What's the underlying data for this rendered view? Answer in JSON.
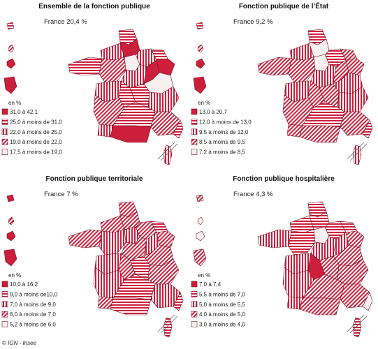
{
  "colors": {
    "accent": "#cc1f3c",
    "border": "#7a0f22",
    "empty": "#f7f0f1"
  },
  "credit": "© IGN - Insee",
  "unit_label": "en %",
  "panels": [
    {
      "title": "Ensemble de la fonction publique",
      "france": "France 20,4 %",
      "legend": [
        {
          "label": "31,0 à 42,1",
          "pattern": "solid"
        },
        {
          "label": "25,0 à moins de 31,0",
          "pattern": "hlines"
        },
        {
          "label": "22,0 à moins de 25,0",
          "pattern": "vlines"
        },
        {
          "label": "19,0 à moins de 22,0",
          "pattern": "diag"
        },
        {
          "label": "17,5 à moins de 19,0",
          "pattern": "empty"
        }
      ],
      "regions": [
        "hlines",
        "solid",
        "vlines",
        "hlines",
        "empty",
        "vlines",
        "hlines",
        "diag",
        "vlines",
        "solid",
        "solid",
        "empty",
        "vlines",
        "hlines",
        "hlines",
        "vlines",
        "diag",
        "hlines",
        "vlines",
        "solid",
        "diag",
        "hlines"
      ],
      "overseas": [
        "hlines",
        "diag",
        "solid",
        "solid"
      ],
      "corsica": "vlines"
    },
    {
      "title": "Fonction publique de l’État",
      "france": "France 9,2 %",
      "legend": [
        {
          "label": "13,0 à 20,7",
          "pattern": "solid"
        },
        {
          "label": "12,0 à moins de 13,0",
          "pattern": "hlines"
        },
        {
          "label": "9,5 à moins de 12,0",
          "pattern": "vlines"
        },
        {
          "label": "8,5 à moins de 9,5",
          "pattern": "diag"
        },
        {
          "label": "7,2 à moins de 8,5",
          "pattern": "empty"
        }
      ],
      "regions": [
        "hlines",
        "empty",
        "hlines",
        "diag",
        "empty",
        "vlines",
        "diag",
        "diag",
        "vlines",
        "diag",
        "diag",
        "vlines",
        "vlines",
        "diag",
        "diag",
        "vlines",
        "diag",
        "hlines",
        "diag",
        "diag",
        "diag",
        "hlines"
      ],
      "overseas": [
        "hlines",
        "diag",
        "solid",
        "solid"
      ],
      "corsica": "vlines"
    },
    {
      "title": "Fonction publique territoriale",
      "france": "France 7 %",
      "legend": [
        {
          "label": "10,0 à 16,2",
          "pattern": "solid"
        },
        {
          "label": "9,0 à moins de10,0",
          "pattern": "hlines"
        },
        {
          "label": "7,0 à moins de 9,0",
          "pattern": "vlines"
        },
        {
          "label": "6,0 à moins de 7,0",
          "pattern": "diag"
        },
        {
          "label": "5,2 à moins de 6,0",
          "pattern": "empty"
        }
      ],
      "regions": [
        "diag",
        "diag",
        "diag",
        "hlines",
        "vlines",
        "diag",
        "diag",
        "vlines",
        "diag",
        "diag",
        "vlines",
        "diag",
        "vlines",
        "diag",
        "hlines",
        "diag",
        "vlines",
        "hlines",
        "diag",
        "hlines",
        "vlines",
        "hlines"
      ],
      "overseas": [
        "solid",
        "diag",
        "solid",
        "solid"
      ],
      "corsica": "hlines"
    },
    {
      "title": "Fonction publique hospitalière",
      "france": "France 4,3 %",
      "legend": [
        {
          "label": "7,0 à 7,4",
          "pattern": "solid"
        },
        {
          "label": "5,5 à moins de 7,0",
          "pattern": "hlines"
        },
        {
          "label": "5,0 à moins de 5,5",
          "pattern": "vlines"
        },
        {
          "label": "4,0 à moins de 5,0",
          "pattern": "diag"
        },
        {
          "label": "3,0 à moins de 4,0",
          "pattern": "empty"
        }
      ],
      "regions": [
        "hlines",
        "hlines",
        "hlines",
        "hlines",
        "empty",
        "hlines",
        "vlines",
        "hlines",
        "vlines",
        "diag",
        "vlines",
        "diag",
        "vlines",
        "solid",
        "diag",
        "diag",
        "vlines",
        "diag",
        "vlines",
        "diag",
        "diag",
        "empty"
      ],
      "overseas": [
        "diag",
        "empty",
        "empty",
        "diag"
      ],
      "corsica": "hlines"
    }
  ]
}
